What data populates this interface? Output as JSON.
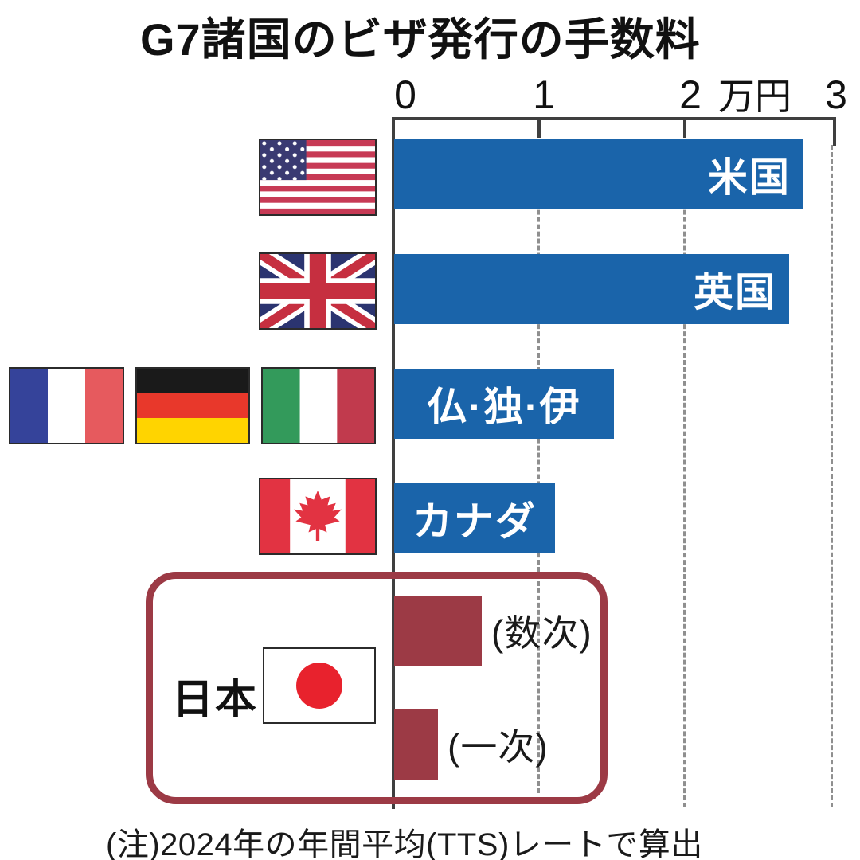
{
  "title": "G7諸国のビザ発行の手数料",
  "footnote": "(注)2024年の年間平均(TTS)レートで算出",
  "axis": {
    "tick_labels": [
      "0",
      "1",
      "2",
      "3"
    ],
    "unit_label": "万円"
  },
  "japan_group_label": "日本",
  "bars": [
    {
      "label": "米国",
      "flag": "united-states",
      "value": 2.8
    },
    {
      "label": "英国",
      "flag": "united-kingdom",
      "value": 2.7
    },
    {
      "label": "仏·独·伊",
      "flag": "france-germany-italy",
      "value": 1.5
    },
    {
      "label": "カナダ",
      "flag": "canada",
      "value": 1.1
    },
    {
      "label": "(数次)",
      "flag": "japan",
      "value": 0.6
    },
    {
      "label": "(一次)",
      "flag": "japan",
      "value": 0.3
    }
  ],
  "chart_data": {
    "type": "bar",
    "orientation": "horizontal",
    "title": "G7諸国のビザ発行の手数料",
    "categories": [
      "米国",
      "英国",
      "仏·独·伊",
      "カナダ",
      "日本(数次)",
      "日本(一次)"
    ],
    "values": [
      2.8,
      2.7,
      1.5,
      1.1,
      0.6,
      0.3
    ],
    "unit": "万円",
    "xlabel": "万円",
    "xlim": [
      0,
      3
    ],
    "x_ticks": [
      0,
      1,
      2,
      3
    ],
    "grid": "dashed vertical gridlines at 1, 2 and 3",
    "legend": "none",
    "colors": {
      "g7_bar_blue": "#1a64aa",
      "japan_bar_red": "#9c3a45",
      "japan_box_border": "#9c3a45"
    },
    "note": "(注)2024年の年間平均(TTS)レートで算出"
  }
}
